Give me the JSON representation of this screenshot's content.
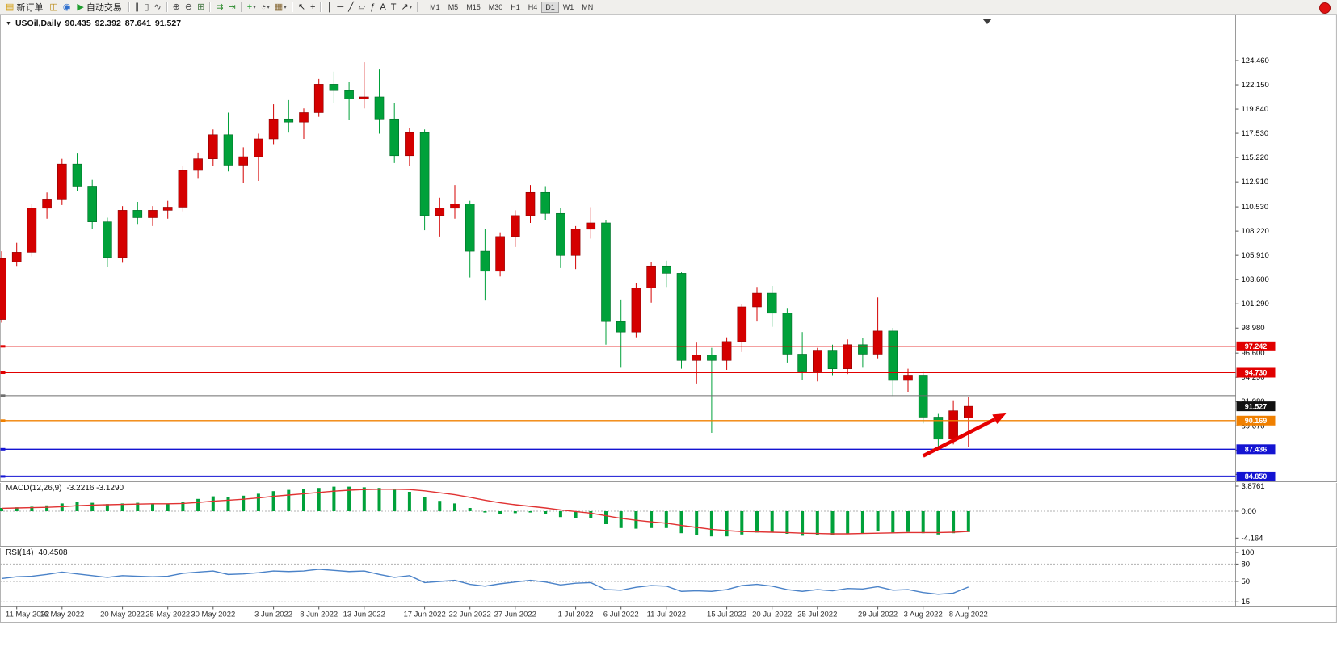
{
  "toolbar": {
    "items": [
      {
        "name": "new-order-button",
        "type": "button",
        "glyph": "▤",
        "glyph_color": "#d4a017",
        "label": "新订单"
      },
      {
        "name": "chart-profiles-icon",
        "type": "icon",
        "glyph": "◫",
        "glyph_color": "#b8860b"
      },
      {
        "name": "data-window-icon",
        "type": "icon",
        "glyph": "◉",
        "glyph_color": "#2e6fce"
      },
      {
        "name": "auto-trading-button",
        "type": "button",
        "glyph": "▶",
        "glyph_color": "#1f9d2f",
        "label": "自动交易"
      },
      {
        "type": "sep"
      },
      {
        "name": "bar-chart-icon",
        "type": "icon",
        "glyph": "∥",
        "glyph_color": "#444444"
      },
      {
        "name": "candlestick-chart-icon",
        "type": "icon",
        "glyph": "▯",
        "glyph_color": "#444444"
      },
      {
        "name": "line-chart-icon",
        "type": "icon",
        "glyph": "∿",
        "glyph_color": "#444444"
      },
      {
        "type": "sep"
      },
      {
        "name": "zoom-in-icon",
        "type": "icon",
        "glyph": "⊕",
        "glyph_color": "#444444"
      },
      {
        "name": "zoom-out-icon",
        "type": "icon",
        "glyph": "⊖",
        "glyph_color": "#444444"
      },
      {
        "name": "tile-windows-icon",
        "type": "icon",
        "glyph": "⊞",
        "glyph_color": "#447744"
      },
      {
        "type": "sep"
      },
      {
        "name": "auto-scroll-icon",
        "type": "icon",
        "glyph": "⇉",
        "glyph_color": "#2e8b2e"
      },
      {
        "name": "chart-shift-icon",
        "type": "icon",
        "glyph": "⇥",
        "glyph_color": "#2e8b2e"
      },
      {
        "type": "sep"
      },
      {
        "name": "new-chart-icon",
        "type": "icon",
        "glyph": "+",
        "glyph_color": "#1f9d2f",
        "caret": true
      },
      {
        "name": "period-icon",
        "type": "icon",
        "glyph": "◔",
        "glyph_color": "#444444",
        "caret": true
      },
      {
        "name": "template-icon",
        "type": "icon",
        "glyph": "▦",
        "glyph_color": "#8a6d3b",
        "caret": true
      },
      {
        "type": "sep"
      },
      {
        "name": "cursor-icon",
        "type": "icon",
        "glyph": "↖",
        "glyph_color": "#222222"
      },
      {
        "name": "crosshair-icon",
        "type": "icon",
        "glyph": "+",
        "glyph_color": "#222222"
      },
      {
        "type": "sep"
      },
      {
        "name": "vertical-line-icon",
        "type": "icon",
        "glyph": "│",
        "glyph_color": "#222222"
      },
      {
        "name": "horizontal-line-icon",
        "type": "icon",
        "glyph": "─",
        "glyph_color": "#222222"
      },
      {
        "name": "trendline-icon",
        "type": "icon",
        "glyph": "╱",
        "glyph_color": "#222222"
      },
      {
        "name": "channel-icon",
        "type": "icon",
        "glyph": "▱",
        "glyph_color": "#222222"
      },
      {
        "name": "fibonacci-icon",
        "type": "icon",
        "glyph": "ƒ",
        "glyph_color": "#222222"
      },
      {
        "name": "text-icon",
        "type": "icon",
        "glyph": "A",
        "glyph_color": "#222222"
      },
      {
        "name": "label-icon",
        "type": "icon",
        "glyph": "T",
        "glyph_color": "#222222"
      },
      {
        "name": "arrows-tool-icon",
        "type": "icon",
        "glyph": "↗",
        "glyph_color": "#222222",
        "caret": true
      },
      {
        "type": "sep"
      }
    ],
    "timeframes": [
      "M1",
      "M5",
      "M15",
      "M30",
      "H1",
      "H4",
      "D1",
      "W1",
      "MN"
    ],
    "active_timeframe": "D1",
    "notification_color": "#e01212"
  },
  "chart": {
    "header": {
      "symbol": "USOil,Daily",
      "open": "90.435",
      "high": "92.392",
      "low": "87.641",
      "close": "91.527"
    }
  },
  "indicators": {
    "macd": {
      "label": "MACD(12,26,9)",
      "values": "-3.2216 -3.1290"
    },
    "rsi": {
      "label": "RSI(14)",
      "values": "40.4508"
    }
  },
  "chart_data": [
    {
      "type": "candlestick",
      "symbol": "USOil",
      "timeframe": "Daily",
      "up_color": "#d40000",
      "down_color": "#00a13a",
      "ylim": [
        84.2,
        125.9
      ],
      "price_axis_ticks": [
        "124.460",
        "122.150",
        "119.840",
        "117.530",
        "115.220",
        "112.910",
        "110.530",
        "108.220",
        "105.910",
        "103.600",
        "101.290",
        "98.980",
        "96.600",
        "94.290",
        "91.980",
        "89.670",
        "87.360",
        "85.050"
      ],
      "x_ticks": [
        {
          "label": "11 May 2022",
          "index": 1
        },
        {
          "label": "16 May 2022",
          "index": 4
        },
        {
          "label": "20 May 2022",
          "index": 8
        },
        {
          "label": "25 May 2022",
          "index": 11
        },
        {
          "label": "30 May 2022",
          "index": 14
        },
        {
          "label": "3 Jun 2022",
          "index": 18
        },
        {
          "label": "8 Jun 2022",
          "index": 21
        },
        {
          "label": "13 Jun 2022",
          "index": 24
        },
        {
          "label": "17 Jun 2022",
          "index": 28
        },
        {
          "label": "22 Jun 2022",
          "index": 31
        },
        {
          "label": "27 Jun 2022",
          "index": 34
        },
        {
          "label": "1 Jul 2022",
          "index": 38
        },
        {
          "label": "6 Jul 2022",
          "index": 41
        },
        {
          "label": "11 Jul 2022",
          "index": 44
        },
        {
          "label": "15 Jul 2022",
          "index": 48
        },
        {
          "label": "20 Jul 2022",
          "index": 51
        },
        {
          "label": "25 Jul 2022",
          "index": 54
        },
        {
          "label": "29 Jul 2022",
          "index": 58
        },
        {
          "label": "3 Aug 2022",
          "index": 61
        },
        {
          "label": "8 Aug 2022",
          "index": 64
        }
      ],
      "ohlc": [
        [
          99.8,
          106.3,
          99.5,
          105.6
        ],
        [
          105.3,
          107.1,
          104.9,
          106.2
        ],
        [
          106.2,
          110.8,
          105.8,
          110.4
        ],
        [
          110.4,
          111.9,
          109.4,
          111.2
        ],
        [
          111.2,
          115.1,
          110.7,
          114.6
        ],
        [
          114.6,
          115.6,
          112.0,
          112.5
        ],
        [
          112.5,
          113.1,
          108.4,
          109.1
        ],
        [
          109.1,
          109.5,
          104.8,
          105.7
        ],
        [
          105.7,
          110.6,
          105.2,
          110.2
        ],
        [
          110.2,
          111.0,
          108.9,
          109.5
        ],
        [
          109.5,
          110.6,
          108.7,
          110.2
        ],
        [
          110.2,
          111.1,
          109.4,
          110.5
        ],
        [
          110.5,
          114.4,
          110.1,
          114.0
        ],
        [
          114.0,
          115.7,
          113.2,
          115.1
        ],
        [
          115.1,
          117.9,
          114.4,
          117.4
        ],
        [
          117.4,
          119.5,
          113.9,
          114.5
        ],
        [
          114.5,
          116.2,
          112.8,
          115.3
        ],
        [
          115.3,
          117.5,
          113.0,
          117.0
        ],
        [
          117.0,
          120.3,
          116.5,
          118.9
        ],
        [
          118.9,
          120.7,
          117.6,
          118.6
        ],
        [
          118.6,
          119.9,
          117.0,
          119.5
        ],
        [
          119.5,
          122.7,
          119.1,
          122.2
        ],
        [
          122.2,
          123.4,
          120.4,
          121.6
        ],
        [
          121.6,
          122.4,
          118.8,
          120.8
        ],
        [
          120.8,
          124.3,
          119.9,
          121.0
        ],
        [
          121.0,
          123.6,
          117.5,
          118.9
        ],
        [
          118.9,
          120.4,
          114.7,
          115.4
        ],
        [
          115.4,
          118.0,
          114.4,
          117.6
        ],
        [
          117.6,
          117.9,
          108.3,
          109.7
        ],
        [
          109.7,
          111.4,
          107.7,
          110.4
        ],
        [
          110.4,
          112.6,
          109.4,
          110.8
        ],
        [
          110.8,
          111.1,
          103.8,
          106.3
        ],
        [
          106.3,
          108.4,
          101.6,
          104.4
        ],
        [
          104.4,
          108.1,
          103.9,
          107.7
        ],
        [
          107.7,
          110.2,
          106.7,
          109.7
        ],
        [
          109.7,
          112.6,
          109.0,
          111.9
        ],
        [
          111.9,
          112.5,
          109.3,
          109.9
        ],
        [
          109.9,
          110.4,
          104.7,
          105.9
        ],
        [
          105.9,
          108.7,
          104.6,
          108.4
        ],
        [
          108.4,
          110.5,
          107.5,
          109.0
        ],
        [
          109.0,
          109.3,
          97.4,
          99.6
        ],
        [
          99.6,
          101.7,
          95.2,
          98.6
        ],
        [
          98.6,
          103.3,
          98.1,
          102.8
        ],
        [
          102.8,
          105.3,
          101.4,
          104.9
        ],
        [
          104.9,
          105.4,
          102.9,
          104.2
        ],
        [
          104.2,
          104.3,
          95.1,
          95.9
        ],
        [
          95.9,
          97.6,
          93.7,
          96.4
        ],
        [
          96.4,
          97.1,
          89.0,
          95.9
        ],
        [
          95.9,
          98.1,
          95.0,
          97.7
        ],
        [
          97.7,
          101.3,
          96.7,
          101.0
        ],
        [
          101.0,
          102.9,
          99.6,
          102.3
        ],
        [
          102.3,
          103.0,
          99.1,
          100.4
        ],
        [
          100.4,
          100.9,
          95.7,
          96.5
        ],
        [
          96.5,
          98.6,
          94.0,
          94.8
        ],
        [
          94.8,
          97.1,
          93.9,
          96.8
        ],
        [
          96.8,
          97.4,
          94.5,
          95.1
        ],
        [
          95.1,
          97.9,
          94.6,
          97.4
        ],
        [
          97.4,
          98.0,
          95.2,
          96.5
        ],
        [
          96.5,
          101.9,
          96.1,
          98.7
        ],
        [
          98.7,
          99.0,
          92.5,
          94.0
        ],
        [
          94.0,
          95.1,
          92.9,
          94.5
        ],
        [
          94.5,
          94.8,
          89.9,
          90.5
        ],
        [
          90.5,
          90.8,
          87.5,
          88.4
        ],
        [
          88.4,
          92.1,
          87.9,
          91.1
        ],
        [
          90.435,
          92.392,
          87.641,
          91.527
        ]
      ],
      "levels": [
        {
          "name": "resistance-line-97242",
          "price": 97.242,
          "color": "#e10000",
          "label": "97.242",
          "line": true,
          "width": 1
        },
        {
          "name": "resistance-line-94730",
          "price": 94.73,
          "color": "#e10000",
          "label": "94.730",
          "line": true,
          "width": 1
        },
        {
          "name": "horizontal-line-gray",
          "price": 92.55,
          "color": "#6e6e6e",
          "label": "",
          "line": true,
          "width": 1
        },
        {
          "name": "current-price",
          "price": 91.527,
          "color": "#111111",
          "label": "91.527",
          "line": false,
          "width": 1
        },
        {
          "name": "support-line-90169",
          "price": 90.169,
          "color": "#f08000",
          "label": "90.169",
          "line": true,
          "width": 1.4
        },
        {
          "name": "support-line-87436",
          "price": 87.436,
          "color": "#1414d2",
          "label": "87.436",
          "line": true,
          "width": 1.4
        },
        {
          "name": "support-line-84850",
          "price": 84.85,
          "color": "#1414d2",
          "label": "84.850",
          "line": true,
          "width": 2
        }
      ],
      "arrow": {
        "name": "trend-arrow",
        "color": "#e60000",
        "x1_index": 61,
        "price1": 86.8,
        "x2_index": 66.5,
        "price2": 90.85
      }
    },
    {
      "type": "bar",
      "name": "MACD(12,26,9)",
      "current_values": "-3.2216 -3.1290",
      "axis_ticks": [
        "3.8761",
        "0.00",
        "-4.164"
      ],
      "histogram_color": "#00a13a",
      "signal_color": "#e03232",
      "histogram": [
        0.5,
        0.6,
        0.7,
        0.9,
        1.2,
        1.4,
        1.3,
        1.1,
        1.2,
        1.3,
        1.2,
        1.2,
        1.5,
        1.9,
        2.3,
        2.2,
        2.4,
        2.7,
        3.1,
        3.3,
        3.4,
        3.6,
        3.8,
        3.8,
        3.7,
        3.6,
        3.3,
        3.0,
        2.2,
        1.6,
        1.2,
        0.5,
        -0.2,
        -0.4,
        -0.3,
        -0.2,
        -0.4,
        -0.9,
        -1.0,
        -1.1,
        -2.0,
        -2.6,
        -2.7,
        -2.6,
        -2.6,
        -3.4,
        -3.7,
        -3.9,
        -3.9,
        -3.6,
        -3.3,
        -3.2,
        -3.5,
        -3.8,
        -3.7,
        -3.7,
        -3.5,
        -3.4,
        -3.1,
        -3.3,
        -3.2,
        -3.4,
        -3.6,
        -3.4,
        -3.2216
      ],
      "signal": [
        0.45,
        0.5,
        0.55,
        0.6,
        0.7,
        0.85,
        0.95,
        1.0,
        1.05,
        1.1,
        1.15,
        1.15,
        1.2,
        1.35,
        1.55,
        1.7,
        1.85,
        2.05,
        2.3,
        2.5,
        2.7,
        2.9,
        3.1,
        3.25,
        3.35,
        3.4,
        3.4,
        3.35,
        3.15,
        2.85,
        2.55,
        2.15,
        1.7,
        1.3,
        1.0,
        0.75,
        0.5,
        0.2,
        -0.05,
        -0.3,
        -0.7,
        -1.1,
        -1.4,
        -1.65,
        -1.85,
        -2.2,
        -2.5,
        -2.8,
        -3.0,
        -3.15,
        -3.2,
        -3.25,
        -3.3,
        -3.4,
        -3.45,
        -3.5,
        -3.5,
        -3.45,
        -3.4,
        -3.35,
        -3.3,
        -3.3,
        -3.3,
        -3.25,
        -3.129
      ]
    },
    {
      "type": "line",
      "name": "RSI(14)",
      "current_value": "40.4508",
      "axis_ticks": [
        "100",
        "80",
        "50",
        "15"
      ],
      "level_lines": [
        80,
        50,
        15
      ],
      "line_color": "#4a82c8",
      "values": [
        55,
        58,
        59,
        62,
        66,
        63,
        60,
        57,
        60,
        59,
        58,
        59,
        64,
        66,
        68,
        62,
        63,
        65,
        68,
        67,
        68,
        71,
        69,
        67,
        68,
        62,
        57,
        60,
        48,
        50,
        52,
        45,
        42,
        46,
        49,
        52,
        49,
        44,
        47,
        48,
        36,
        35,
        40,
        43,
        42,
        33,
        34,
        33,
        36,
        43,
        45,
        42,
        36,
        33,
        36,
        34,
        38,
        37,
        41,
        35,
        36,
        31,
        28,
        30,
        40.45
      ]
    }
  ]
}
